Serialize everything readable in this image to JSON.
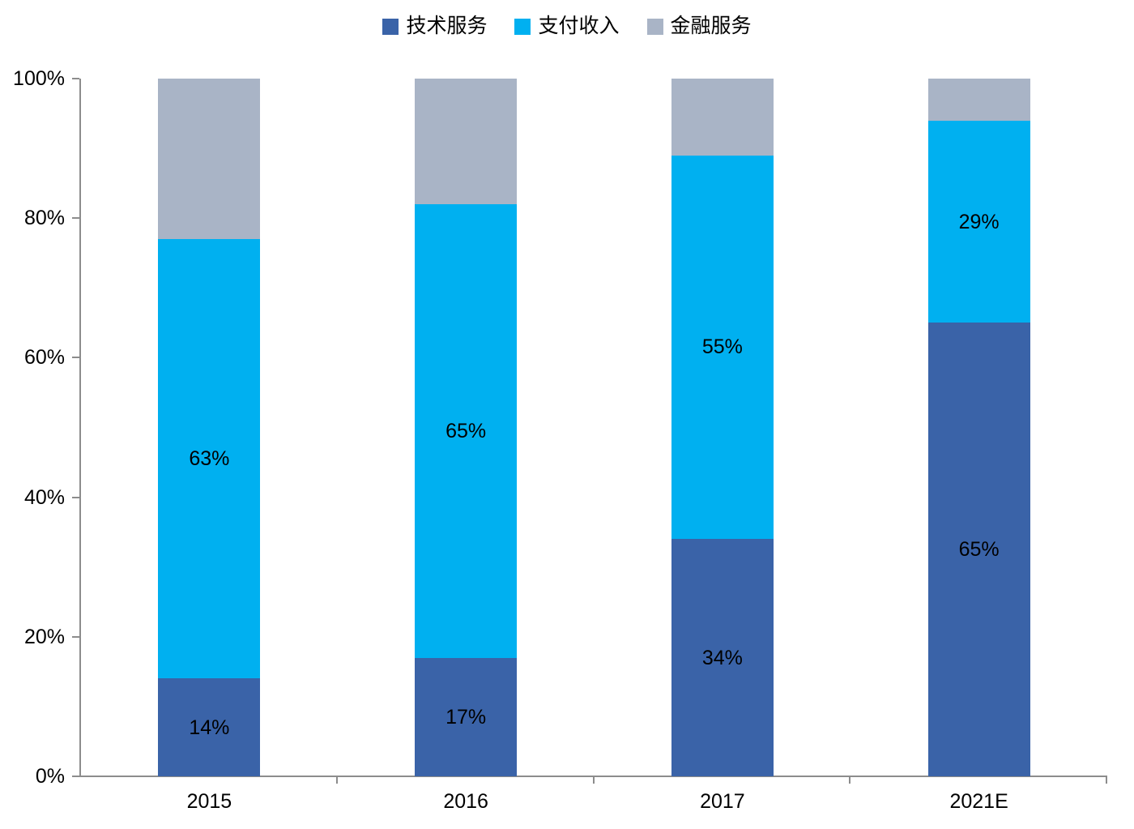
{
  "chart_data": {
    "type": "bar",
    "stacked": true,
    "percent_stacked": true,
    "title": "",
    "xlabel": "",
    "ylabel": "",
    "ylim": [
      0,
      100
    ],
    "grid": false,
    "legend_position": "top-center",
    "categories": [
      "2015",
      "2016",
      "2017",
      "2021E"
    ],
    "y_ticks": [
      "0%",
      "20%",
      "40%",
      "60%",
      "80%",
      "100%"
    ],
    "series": [
      {
        "name": "技术服务",
        "color": "#3A63A8",
        "values": [
          14,
          17,
          34,
          65
        ],
        "labels": [
          "14%",
          "17%",
          "34%",
          "65%"
        ]
      },
      {
        "name": "支付收入",
        "color": "#00B0F0",
        "values": [
          63,
          65,
          55,
          29
        ],
        "labels": [
          "63%",
          "65%",
          "55%",
          "29%"
        ]
      },
      {
        "name": "金融服务",
        "color": "#A9B4C6",
        "values": [
          23,
          18,
          11,
          6
        ],
        "labels": [
          "",
          "",
          "",
          ""
        ]
      }
    ],
    "colors": {
      "axis": "#8C8C8C",
      "label_text": "#000000",
      "background": "#FFFFFF"
    }
  }
}
